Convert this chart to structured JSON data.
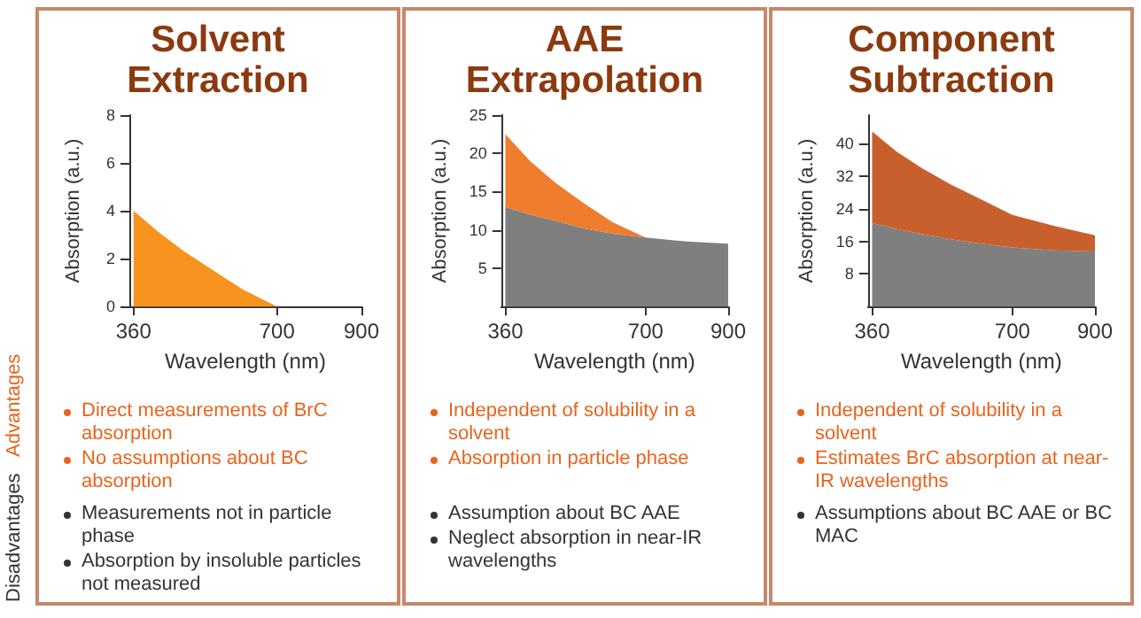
{
  "chart_data": [
    {
      "type": "area",
      "title": "Solvent Extraction",
      "xlabel": "Wavelength (nm)",
      "ylabel": "Absorption (a.u.)",
      "xlim": [
        350,
        900
      ],
      "xticks": [
        360,
        700,
        900
      ],
      "ylim": [
        0,
        8
      ],
      "yticks": [
        0,
        2,
        4,
        6,
        8
      ],
      "x": [
        360,
        420,
        480,
        550,
        620,
        700
      ],
      "series": [
        {
          "color": "#f7931e",
          "values": [
            4,
            3.1,
            2.3,
            1.5,
            0.7,
            0
          ]
        }
      ],
      "annotations": [
        "Advantages",
        "Direct measurements of BrC absorption",
        "No assumptions about BC absorption",
        "Disadvantages",
        "Measurements not in particle phase",
        "Absorption by insoluble particles not measured"
      ]
    },
    {
      "type": "area",
      "title": "AAE Extrapolation",
      "xlabel": "Wavelength (nm)",
      "ylabel": "Absorption (a.u.)",
      "xlim": [
        350,
        900
      ],
      "xticks": [
        360,
        700,
        900
      ],
      "ylim": [
        0,
        25
      ],
      "yticks": [
        5,
        10,
        15,
        20,
        25
      ],
      "stacked": true,
      "x": [
        360,
        420,
        480,
        550,
        620,
        700,
        800,
        900
      ],
      "series": [
        {
          "color": "#7f7f7f",
          "values": [
            13,
            12,
            11.2,
            10.2,
            9.5,
            9,
            8.5,
            8.2
          ]
        },
        {
          "color": "#ee7d2e",
          "values": [
            9.5,
            7,
            5,
            3.3,
            1.5,
            0,
            0,
            0
          ]
        }
      ],
      "annotations": [
        "Independent of solubility in a solvent",
        "Absorption in particle phase",
        "Assumption about BC AAE",
        "Neglect absorption in near-IR wavelengths"
      ]
    },
    {
      "type": "area",
      "title": "Component Subtraction",
      "xlabel": "Wavelength (nm)",
      "ylabel": "Absorption (a.u.)",
      "xlim": [
        350,
        900
      ],
      "xticks": [
        360,
        700,
        900
      ],
      "ylim": [
        0,
        47
      ],
      "yticks": [
        8,
        16,
        24,
        32,
        40
      ],
      "stacked": true,
      "x": [
        360,
        420,
        480,
        550,
        620,
        700,
        800,
        900
      ],
      "series": [
        {
          "color": "#7f7f7f",
          "values": [
            20.5,
            19,
            17.8,
            16.5,
            15.5,
            14.5,
            13.8,
            13.5
          ]
        },
        {
          "color": "#c8602e",
          "values": [
            22.5,
            19,
            16.2,
            13.5,
            11,
            8,
            6,
            4
          ]
        }
      ],
      "annotations": [
        "Independent of solubility in a solvent",
        "Estimates BrC absorption at near-IR wavelengths",
        "Assumptions about BC AAE or BC MAC"
      ]
    }
  ]
}
